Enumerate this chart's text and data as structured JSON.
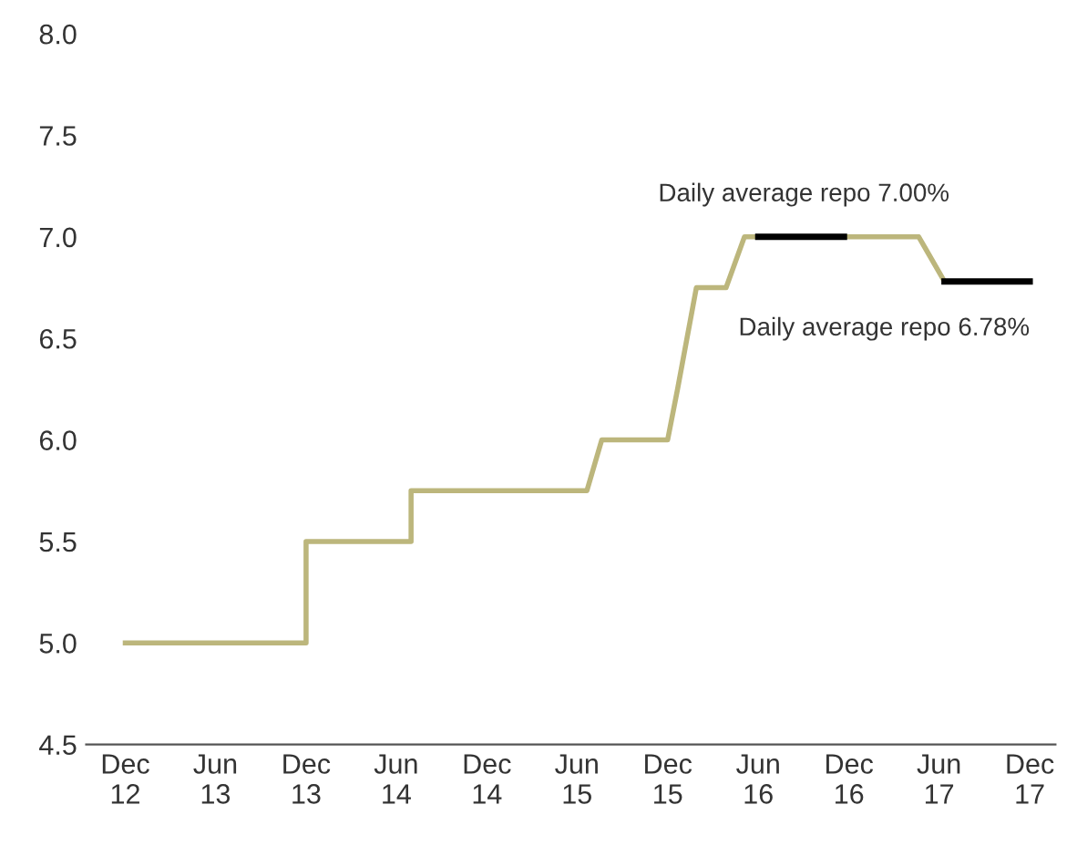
{
  "chart_data": {
    "type": "line",
    "x": [
      "2012-12-01",
      "2013-12-01",
      "2013-12-01",
      "2014-07-01",
      "2014-07-01",
      "2015-06-21",
      "2015-07-21",
      "2015-12-01",
      "2015-12-21",
      "2016-01-28",
      "2016-03-28",
      "2016-05-04",
      "2017-04-21",
      "2017-06-12",
      "2017-12-01"
    ],
    "series": [
      {
        "color": "#bcb67c",
        "values": [
          5.0,
          5.0,
          5.5,
          5.5,
          5.75,
          5.75,
          6.0,
          6.0,
          6.25,
          6.75,
          6.75,
          7.0,
          7.0,
          6.78,
          6.78
        ]
      },
      {
        "color": "#000000",
        "x": [
          "2016-06-01",
          "2016-11-21",
          "2017-02-01",
          "2017-06-12",
          "2017-12-01"
        ],
        "values": [
          7.0,
          7.0,
          null,
          6.78,
          6.78
        ]
      }
    ],
    "xlim": [
      "2012-09-13",
      "2018-01-22"
    ],
    "xticks": [
      {
        "value": "2012-12-01",
        "label": "Dec\n12"
      },
      {
        "value": "2013-06-01",
        "label": "Jun\n13"
      },
      {
        "value": "2013-12-01",
        "label": "Dec\n13"
      },
      {
        "value": "2014-06-01",
        "label": "Jun\n14"
      },
      {
        "value": "2014-12-01",
        "label": "Dec\n14"
      },
      {
        "value": "2015-06-01",
        "label": "Jun\n15"
      },
      {
        "value": "2015-12-01",
        "label": "Dec\n15"
      },
      {
        "value": "2016-06-01",
        "label": "Jun\n16"
      },
      {
        "value": "2016-12-01",
        "label": "Dec\n16"
      },
      {
        "value": "2017-06-01",
        "label": "Jun\n17"
      },
      {
        "value": "2017-12-01",
        "label": "Dec\n17"
      }
    ],
    "ylim": [
      4.5,
      8.0
    ],
    "yticks": [
      {
        "value": 4.5,
        "label": "4.5"
      },
      {
        "value": 5.0,
        "label": "5.0"
      },
      {
        "value": 5.5,
        "label": "5.5"
      },
      {
        "value": 6.0,
        "label": "6.0"
      },
      {
        "value": 6.5,
        "label": "6.5"
      },
      {
        "value": 7.0,
        "label": "7.0"
      },
      {
        "value": 7.5,
        "label": "7.5"
      },
      {
        "value": 8.0,
        "label": "8.0"
      }
    ],
    "annotations": [
      {
        "text": "Daily average repo 7.00%",
        "x": "2016-09-01",
        "y": 7.0
      },
      {
        "text": "Daily average repo 6.78%",
        "x": "2017-12-01",
        "y": 6.78
      }
    ],
    "grid": false,
    "legend": false,
    "marker": "none",
    "line_style": "solid"
  }
}
